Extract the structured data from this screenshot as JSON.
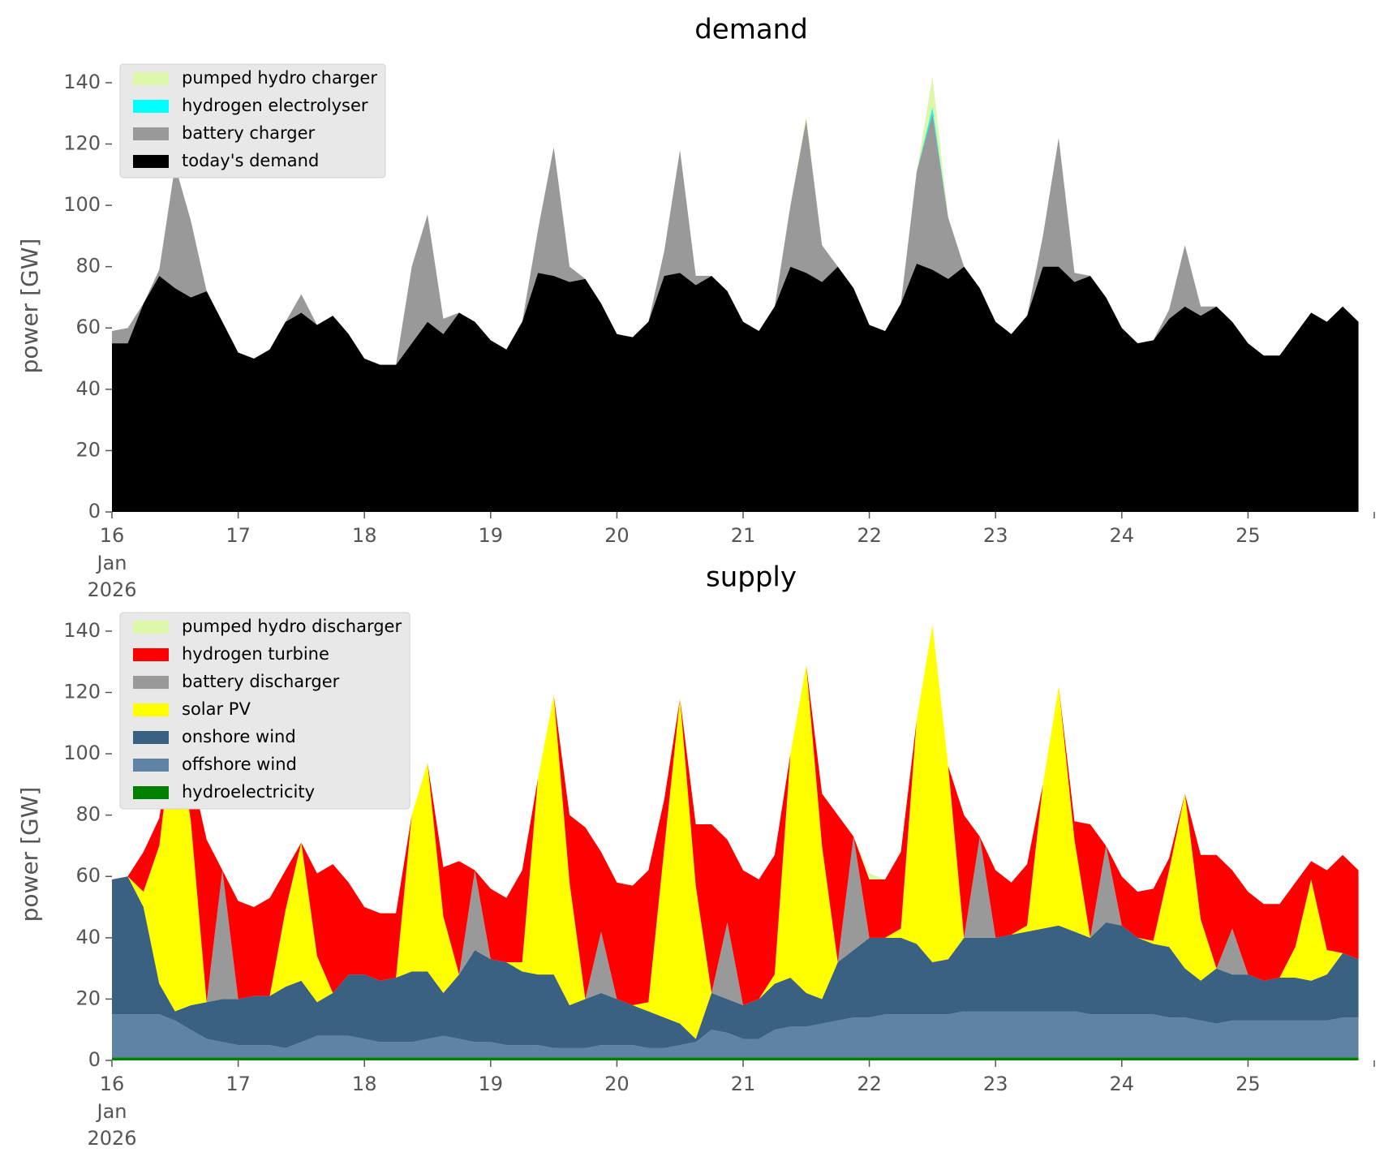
{
  "chart_data": [
    {
      "type": "stacked_area",
      "title": "demand",
      "ylabel": "power [GW]",
      "x": [
        16,
        16.125,
        16.25,
        16.375,
        16.5,
        16.625,
        16.75,
        16.875,
        17,
        17.125,
        17.25,
        17.375,
        17.5,
        17.625,
        17.75,
        17.875,
        18,
        18.125,
        18.25,
        18.375,
        18.5,
        18.625,
        18.75,
        18.875,
        19,
        19.125,
        19.25,
        19.375,
        19.5,
        19.625,
        19.75,
        19.875,
        20,
        20.125,
        20.25,
        20.375,
        20.5,
        20.625,
        20.75,
        20.875,
        21,
        21.125,
        21.25,
        21.375,
        21.5,
        21.625,
        21.75,
        21.875,
        22,
        22.125,
        22.25,
        22.375,
        22.5,
        22.625,
        22.75,
        22.875,
        23,
        23.125,
        23.25,
        23.375,
        23.5,
        23.625,
        23.75,
        23.875,
        24,
        24.125,
        24.25,
        24.375,
        24.5,
        24.625,
        24.75,
        24.875,
        25,
        25.125,
        25.25,
        25.375,
        25.5,
        25.625,
        25.75,
        25.875
      ],
      "xlim": [
        16,
        26
      ],
      "xticks": [
        16,
        17,
        18,
        19,
        20,
        21,
        22,
        23,
        24,
        25
      ],
      "x_first_tick_sublabels": [
        "Jan",
        "2026"
      ],
      "ylim": [
        0,
        145
      ],
      "yticks": [
        0,
        20,
        40,
        60,
        80,
        100,
        120,
        140
      ],
      "legend": "upper left",
      "series": [
        {
          "name": "pumped hydro charger",
          "color": "#dcf7a8",
          "values": [
            0,
            0,
            0,
            0,
            0,
            0,
            0,
            0,
            0,
            0,
            0,
            0,
            0,
            0,
            0,
            0,
            0,
            0,
            0,
            0,
            0,
            0,
            0,
            0,
            0,
            0,
            0,
            0,
            0,
            0,
            0,
            0,
            0,
            0,
            0,
            0,
            0,
            0,
            0,
            0,
            0,
            0,
            0,
            0,
            1,
            0,
            0,
            0,
            0,
            0,
            0,
            0,
            10,
            0,
            0,
            0,
            0,
            0,
            0,
            0,
            0,
            0,
            0,
            0,
            0,
            0,
            0,
            0,
            0,
            0,
            0,
            0,
            0,
            0,
            0,
            0,
            0,
            0,
            0,
            0
          ]
        },
        {
          "name": "hydrogen electrolyser",
          "color": "#00ffff",
          "values": [
            0,
            0,
            0,
            0,
            0,
            0,
            0,
            0,
            0,
            0,
            0,
            0,
            0,
            0,
            0,
            0,
            0,
            0,
            0,
            0,
            0,
            0,
            0,
            0,
            0,
            0,
            0,
            0,
            0,
            0,
            0,
            0,
            0,
            0,
            0,
            0,
            0,
            0,
            0,
            0,
            0,
            0,
            0,
            0,
            0,
            0,
            0,
            0,
            0,
            0,
            0,
            0,
            2,
            0,
            0,
            0,
            0,
            0,
            0,
            0,
            0,
            0,
            0,
            0,
            0,
            0,
            0,
            0,
            0,
            0,
            0,
            0,
            0,
            0,
            0,
            0,
            0,
            0,
            0,
            0
          ]
        },
        {
          "name": "battery charger",
          "color": "#999999",
          "values": [
            4,
            5,
            0,
            2,
            40,
            25,
            0,
            0,
            0,
            0,
            0,
            0,
            6,
            0,
            0,
            0,
            0,
            0,
            0,
            25,
            35,
            5,
            0,
            0,
            0,
            0,
            0,
            14,
            42,
            5,
            0,
            0,
            0,
            0,
            0,
            8,
            40,
            3,
            0,
            0,
            0,
            0,
            0,
            20,
            50,
            12,
            0,
            0,
            0,
            0,
            0,
            30,
            51,
            20,
            0,
            0,
            0,
            0,
            0,
            10,
            42,
            3,
            0,
            0,
            0,
            0,
            0,
            3,
            20,
            3,
            0,
            0,
            0,
            0,
            0,
            0,
            0,
            0,
            0,
            0
          ]
        },
        {
          "name": "today's demand",
          "color": "#000000",
          "values": [
            55,
            55,
            68,
            77,
            73,
            70,
            72,
            62,
            52,
            50,
            53,
            62,
            65,
            61,
            64,
            58,
            50,
            48,
            48,
            55,
            62,
            58,
            65,
            62,
            56,
            53,
            62,
            78,
            77,
            75,
            76,
            68,
            58,
            57,
            62,
            77,
            78,
            74,
            77,
            72,
            62,
            59,
            67,
            80,
            78,
            75,
            80,
            73,
            61,
            59,
            68,
            81,
            79,
            76,
            80,
            73,
            62,
            58,
            64,
            80,
            80,
            75,
            77,
            70,
            60,
            55,
            56,
            63,
            67,
            64,
            67,
            62,
            55,
            51,
            51,
            58,
            65,
            62,
            67,
            62
          ]
        }
      ]
    },
    {
      "type": "stacked_area",
      "title": "supply",
      "ylabel": "power [GW]",
      "x": [
        16,
        16.125,
        16.25,
        16.375,
        16.5,
        16.625,
        16.75,
        16.875,
        17,
        17.125,
        17.25,
        17.375,
        17.5,
        17.625,
        17.75,
        17.875,
        18,
        18.125,
        18.25,
        18.375,
        18.5,
        18.625,
        18.75,
        18.875,
        19,
        19.125,
        19.25,
        19.375,
        19.5,
        19.625,
        19.75,
        19.875,
        20,
        20.125,
        20.25,
        20.375,
        20.5,
        20.625,
        20.75,
        20.875,
        21,
        21.125,
        21.25,
        21.375,
        21.5,
        21.625,
        21.75,
        21.875,
        22,
        22.125,
        22.25,
        22.375,
        22.5,
        22.625,
        22.75,
        22.875,
        23,
        23.125,
        23.25,
        23.375,
        23.5,
        23.625,
        23.75,
        23.875,
        24,
        24.125,
        24.25,
        24.375,
        24.5,
        24.625,
        24.75,
        24.875,
        25,
        25.125,
        25.25,
        25.375,
        25.5,
        25.625,
        25.75,
        25.875
      ],
      "xlim": [
        16,
        26
      ],
      "xticks": [
        16,
        17,
        18,
        19,
        20,
        21,
        22,
        23,
        24,
        25
      ],
      "x_first_tick_sublabels": [
        "Jan",
        "2026"
      ],
      "ylim": [
        0,
        145
      ],
      "yticks": [
        0,
        20,
        40,
        60,
        80,
        100,
        120,
        140
      ],
      "legend": "upper left",
      "series": [
        {
          "name": "pumped hydro discharger",
          "color": "#dcf7a8",
          "values": [
            0,
            0,
            0,
            0,
            0,
            0,
            0,
            0,
            0,
            0,
            0,
            0,
            0,
            0,
            0,
            0,
            0,
            0,
            0,
            0,
            0,
            0,
            0,
            0,
            0,
            0,
            0,
            0,
            0,
            0,
            0,
            0,
            0,
            0,
            0,
            0,
            0,
            0,
            0,
            0,
            0,
            0,
            0,
            0,
            0,
            0,
            0,
            0,
            2,
            0,
            0,
            0,
            0,
            0,
            0,
            0,
            0,
            0,
            0,
            0,
            0,
            0,
            0,
            0,
            0,
            0,
            0,
            0,
            0,
            0,
            0,
            0,
            0,
            0,
            0,
            0,
            0,
            0,
            0,
            0
          ]
        },
        {
          "name": "hydrogen turbine",
          "color": "#ff0000",
          "values": [
            0,
            0,
            13,
            9,
            0,
            17,
            53,
            0,
            32,
            29,
            32,
            13,
            0,
            27,
            42,
            30,
            22,
            22,
            21,
            0,
            0,
            16,
            37,
            0,
            23,
            21,
            30,
            0,
            0,
            22,
            56,
            26,
            38,
            39,
            43,
            16,
            0,
            20,
            55,
            27,
            44,
            39,
            39,
            0,
            0,
            17,
            48,
            0,
            19,
            19,
            25,
            0,
            0,
            0,
            40,
            0,
            22,
            17,
            20,
            0,
            0,
            6,
            37,
            0,
            16,
            15,
            17,
            4,
            0,
            21,
            37,
            19,
            27,
            25,
            24,
            21,
            6,
            26,
            32,
            29
          ]
        },
        {
          "name": "battery discharger",
          "color": "#999999",
          "values": [
            0,
            0,
            0,
            0,
            0,
            0,
            0,
            42,
            0,
            0,
            0,
            0,
            0,
            0,
            0,
            0,
            0,
            0,
            0,
            0,
            0,
            0,
            0,
            26,
            0,
            0,
            0,
            0,
            0,
            0,
            0,
            20,
            0,
            0,
            0,
            0,
            0,
            0,
            0,
            25,
            0,
            0,
            0,
            0,
            0,
            0,
            0,
            37,
            0,
            0,
            0,
            0,
            0,
            0,
            0,
            33,
            0,
            0,
            0,
            0,
            0,
            0,
            0,
            25,
            0,
            0,
            0,
            0,
            0,
            0,
            0,
            15,
            0,
            0,
            0,
            0,
            0,
            0,
            0,
            0
          ]
        },
        {
          "name": "solar PV",
          "color": "#ffff00",
          "values": [
            0,
            0,
            5,
            45,
            97,
            60,
            0,
            0,
            0,
            0,
            0,
            25,
            45,
            15,
            0,
            0,
            0,
            0,
            0,
            51,
            68,
            25,
            0,
            0,
            0,
            0,
            3,
            64,
            91,
            40,
            0,
            0,
            0,
            0,
            3,
            55,
            106,
            50,
            0,
            0,
            0,
            0,
            3,
            73,
            107,
            50,
            0,
            0,
            0,
            0,
            3,
            73,
            110,
            63,
            0,
            0,
            0,
            0,
            2,
            47,
            78,
            30,
            0,
            0,
            0,
            0,
            1,
            25,
            57,
            20,
            0,
            0,
            0,
            0,
            0,
            10,
            33,
            8,
            0,
            0
          ]
        },
        {
          "name": "onshore wind",
          "color": "#3b6182",
          "values": [
            44,
            45,
            35,
            10,
            3,
            8,
            12,
            14,
            15,
            16,
            16,
            20,
            20,
            11,
            14,
            20,
            21,
            20,
            21,
            23,
            22,
            14,
            21,
            30,
            27,
            27,
            24,
            23,
            24,
            14,
            16,
            17,
            15,
            13,
            12,
            10,
            7,
            1,
            12,
            11,
            11,
            13,
            15,
            16,
            11,
            8,
            19,
            22,
            26,
            25,
            25,
            23,
            17,
            18,
            24,
            24,
            24,
            25,
            26,
            27,
            28,
            26,
            25,
            30,
            29,
            25,
            23,
            23,
            16,
            13,
            18,
            15,
            15,
            13,
            14,
            14,
            13,
            15,
            21,
            19
          ]
        },
        {
          "name": "offshore wind",
          "color": "#5e83a4",
          "values": [
            14,
            14,
            14,
            14,
            12,
            9,
            6,
            5,
            4,
            4,
            4,
            3,
            5,
            7,
            7,
            7,
            6,
            5,
            5,
            5,
            6,
            7,
            6,
            5,
            5,
            4,
            4,
            4,
            3,
            3,
            3,
            4,
            4,
            4,
            3,
            3,
            4,
            5,
            9,
            8,
            6,
            6,
            9,
            10,
            10,
            11,
            12,
            13,
            13,
            14,
            14,
            14,
            14,
            14,
            15,
            15,
            15,
            15,
            15,
            15,
            15,
            15,
            14,
            14,
            14,
            14,
            14,
            13,
            13,
            12,
            11,
            12,
            12,
            12,
            12,
            12,
            12,
            12,
            13,
            13
          ]
        },
        {
          "name": "hydroelectricity",
          "color": "#008000",
          "values": [
            1,
            1,
            1,
            1,
            1,
            1,
            1,
            1,
            1,
            1,
            1,
            1,
            1,
            1,
            1,
            1,
            1,
            1,
            1,
            1,
            1,
            1,
            1,
            1,
            1,
            1,
            1,
            1,
            1,
            1,
            1,
            1,
            1,
            1,
            1,
            1,
            1,
            1,
            1,
            1,
            1,
            1,
            1,
            1,
            1,
            1,
            1,
            1,
            1,
            1,
            1,
            1,
            1,
            1,
            1,
            1,
            1,
            1,
            1,
            1,
            1,
            1,
            1,
            1,
            1,
            1,
            1,
            1,
            1,
            1,
            1,
            1,
            1,
            1,
            1,
            1,
            1,
            1,
            1,
            1
          ]
        }
      ]
    }
  ]
}
